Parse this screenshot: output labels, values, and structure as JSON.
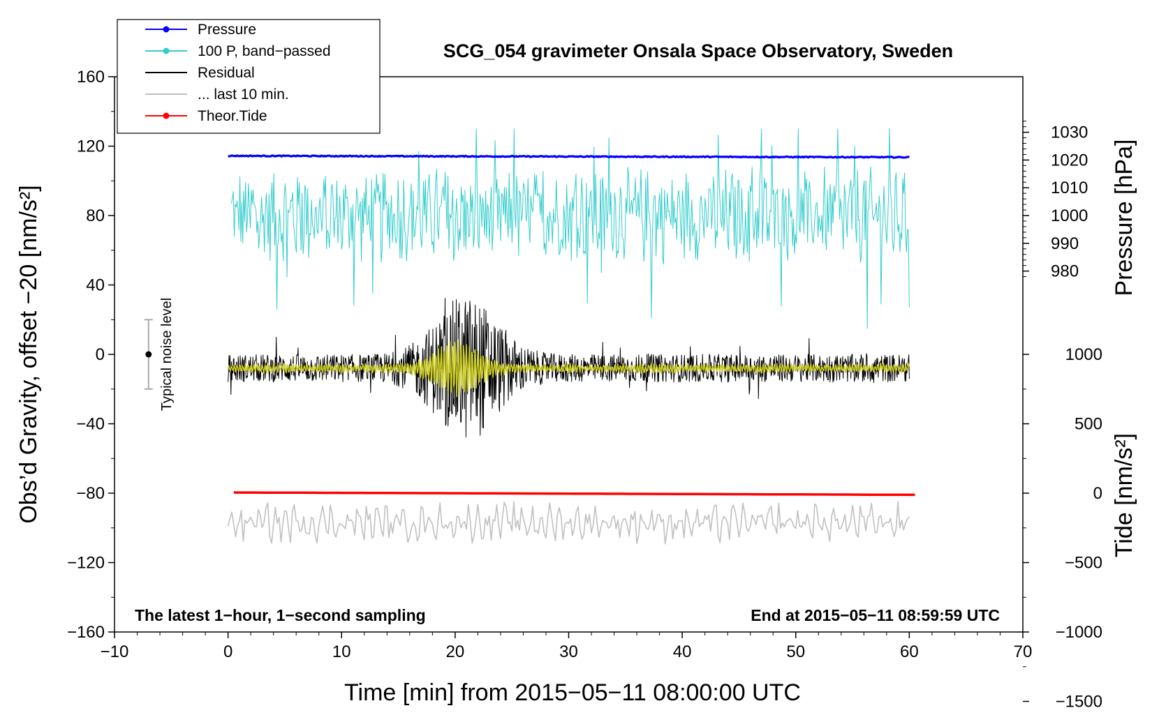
{
  "chart_data": {
    "type": "line",
    "title": "SCG_054 gravimeter Onsala Space Observatory, Sweden",
    "xlabel": "Time [min] from 2015−05−11 08:00:00 UTC",
    "ylabel": "Obs’d Gravity, offset −20 [nm/s²]",
    "ylabel_right_top": "Pressure [hPa]",
    "ylabel_right_bottom": "Tide [nm/s²]",
    "xlim": [
      -10,
      70
    ],
    "ylim": [
      -160,
      160
    ],
    "pressure_range": [
      975,
      1035
    ],
    "tide_range": [
      -1500,
      1500
    ],
    "x_ticks": [
      -10,
      0,
      10,
      20,
      30,
      40,
      50,
      60,
      70
    ],
    "x_tick_labels": [
      "−10",
      "0",
      "10",
      "20",
      "30",
      "40",
      "50",
      "60",
      "70"
    ],
    "y_ticks": [
      160,
      120,
      80,
      40,
      0,
      -40,
      -80,
      -120,
      -160
    ],
    "y_tick_labels": [
      "160",
      "120",
      "80",
      "40",
      "0",
      "−40",
      "−80",
      "−120",
      "−160"
    ],
    "pressure_ticks": [
      1030,
      1020,
      1010,
      1000,
      990,
      980
    ],
    "pressure_tick_labels": [
      "1030",
      "1020",
      "1010",
      "1000",
      "990",
      "980"
    ],
    "tide_ticks": [
      1000,
      500,
      0,
      -500,
      -1000,
      -1500
    ],
    "tide_tick_labels": [
      "1000",
      "500",
      "0",
      "−500",
      "−1000",
      "−1500"
    ],
    "legend": {
      "placement": "top-left",
      "entries": [
        {
          "label": "Pressure",
          "color": "#0000ff",
          "marker": true
        },
        {
          "label": "100 P, band−passed",
          "color": "#33cccc",
          "marker": true
        },
        {
          "label": "Residual",
          "color": "#000000",
          "marker": false
        },
        {
          "label": "... last 10 min.",
          "color": "#c0c0c0",
          "marker": false
        },
        {
          "label": "Theor.Tide",
          "color": "#ff0000",
          "marker": true
        }
      ]
    },
    "series": [
      {
        "name": "Pressure",
        "axis": "pressure_hPa",
        "x_range": [
          0,
          60
        ],
        "start": 1021.5,
        "end": 1021.0,
        "noise": 0.35,
        "color": "#0000ff"
      },
      {
        "name": "100 P, band−passed",
        "axis": "gravity_nm_s2",
        "x_range": [
          0.3,
          60
        ],
        "center": 80,
        "amplitude": 14,
        "min": 15,
        "max": 130,
        "color": "#33cccc"
      },
      {
        "name": "Residual",
        "axis": "gravity_nm_s2",
        "x_range": [
          0,
          60
        ],
        "center": -8,
        "quiet_amplitude": 7,
        "burst_center_min": 21,
        "burst_peak_amplitude": 30,
        "min": -60,
        "max": 48,
        "color": "#000000"
      },
      {
        "name": "Residual (smoothed)",
        "axis": "gravity_nm_s2",
        "x_range": [
          0,
          60
        ],
        "center": -8,
        "burst_peak_amplitude": 14,
        "color": "#cccc22"
      },
      {
        "name": "Theor.Tide",
        "axis": "tide_nm_s2",
        "x_range": [
          0.5,
          60.5
        ],
        "start": 5,
        "end": -12,
        "color": "#ff0000"
      },
      {
        "name": "... last 10 min.",
        "axis": "gravity_nm_s2",
        "x_range": [
          0,
          60
        ],
        "center": -97,
        "amplitude": 6,
        "min": -115,
        "max": -82,
        "color": "#c0c0c0"
      }
    ],
    "noise_indicator": {
      "label": "Typical noise level",
      "x": -7,
      "center": 0,
      "upper": 20,
      "lower": -20
    },
    "annotations": {
      "bottom_left": "The latest 1−hour, 1−second sampling",
      "bottom_right": "End at 2015−05−11 08:59:59 UTC"
    }
  }
}
